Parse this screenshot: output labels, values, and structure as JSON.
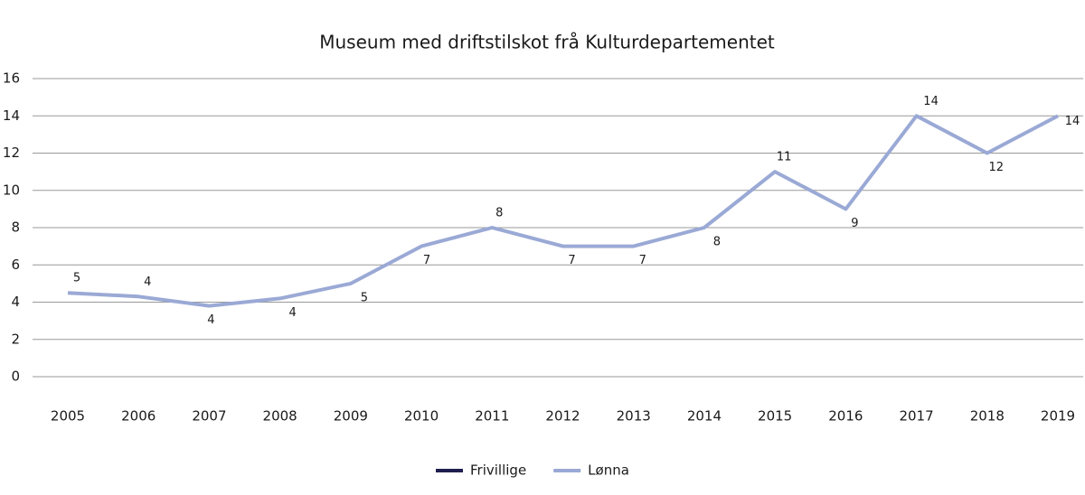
{
  "chart_data": {
    "type": "line",
    "title": "Museum med driftstilskot frå Kulturdepartementet",
    "categories": [
      "2005",
      "2006",
      "2007",
      "2008",
      "2009",
      "2010",
      "2011",
      "2012",
      "2013",
      "2014",
      "2015",
      "2016",
      "2017",
      "2018",
      "2019"
    ],
    "series": [
      {
        "name": "Frivillige",
        "color": "#1f1f4f",
        "values": [
          null,
          null,
          null,
          null,
          null,
          null,
          null,
          null,
          null,
          null,
          null,
          null,
          null,
          null,
          null
        ]
      },
      {
        "name": "Lønna",
        "color": "#9aa9d5",
        "values": [
          4.5,
          4.3,
          3.8,
          4.2,
          5,
          7,
          8,
          7,
          7,
          8,
          11,
          9,
          14,
          12,
          14
        ],
        "value_labels": [
          "5",
          "4",
          "4",
          "4",
          "5",
          "7",
          "8",
          "7",
          "7",
          "8",
          "11",
          "9",
          "14",
          "12",
          "14"
        ]
      }
    ],
    "ylim": [
      0,
      16
    ],
    "yticks": [
      0,
      2,
      4,
      6,
      8,
      10,
      12,
      14,
      16
    ],
    "grid": true,
    "legend": "bottom"
  }
}
